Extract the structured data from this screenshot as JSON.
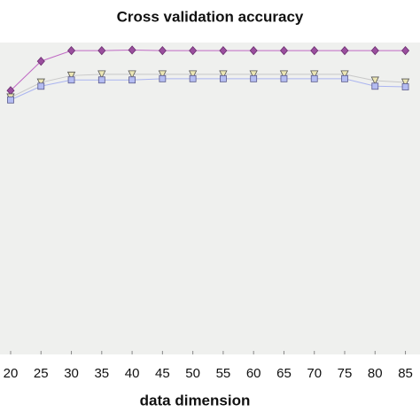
{
  "chart_data": {
    "type": "line",
    "title": "Cross validation accuracy",
    "x_label": "data dimension",
    "x": [
      20,
      25,
      30,
      35,
      40,
      45,
      50,
      55,
      60,
      65,
      70,
      75,
      80,
      85
    ],
    "xlim": [
      18.25,
      87.4
    ],
    "xticks": [
      20,
      25,
      30,
      35,
      40,
      45,
      50,
      55,
      60,
      65,
      70,
      75,
      80,
      85
    ],
    "ylim": [
      0.5,
      1.0
    ],
    "background": "#eff0ee",
    "series": [
      {
        "marker": "diamond",
        "color": "#9a4e9e",
        "line_color": "#c06ac4",
        "values": [
          0.923,
          0.97,
          0.987,
          0.987,
          0.988,
          0.987,
          0.987,
          0.987,
          0.987,
          0.987,
          0.987,
          0.987,
          0.987,
          0.987
        ]
      },
      {
        "marker": "triangle",
        "color": "#ece6b4",
        "line_color": "#c8c8c8",
        "values": [
          0.912,
          0.936,
          0.947,
          0.949,
          0.949,
          0.949,
          0.949,
          0.949,
          0.949,
          0.949,
          0.949,
          0.949,
          0.939,
          0.936
        ]
      },
      {
        "marker": "square",
        "color": "#b4bcf2",
        "line_color": "#aab4f0",
        "values": [
          0.908,
          0.93,
          0.94,
          0.94,
          0.94,
          0.942,
          0.942,
          0.942,
          0.942,
          0.942,
          0.942,
          0.942,
          0.93,
          0.929
        ]
      }
    ]
  }
}
